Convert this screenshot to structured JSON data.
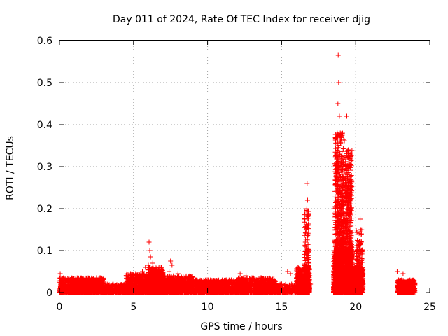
{
  "chart_data": {
    "type": "scatter",
    "title": "Day 011 of 2024, Rate Of TEC Index for receiver djig",
    "xlabel": "GPS time / hours",
    "ylabel": "ROTI / TECUs",
    "xlim": [
      0,
      25
    ],
    "ylim": [
      0,
      0.6
    ],
    "xticks": [
      "0",
      "5",
      "10",
      "15",
      "20",
      "25"
    ],
    "yticks": [
      "0",
      "0.1",
      "0.2",
      "0.3",
      "0.4",
      "0.5",
      "0.6"
    ],
    "grid": true,
    "legend": "none",
    "marker": "plus",
    "color": "#ff0000",
    "points": [
      [
        0.0,
        0.005
      ],
      [
        0.05,
        0.045
      ],
      [
        0.1,
        0.02
      ],
      [
        0.2,
        0.03
      ],
      [
        0.3,
        0.01
      ],
      [
        0.4,
        0.025
      ],
      [
        0.5,
        0.015
      ],
      [
        0.6,
        0.02
      ],
      [
        0.7,
        0.01
      ],
      [
        0.8,
        0.03
      ],
      [
        0.9,
        0.012
      ],
      [
        1.0,
        0.02
      ],
      [
        1.1,
        0.008
      ],
      [
        1.2,
        0.025
      ],
      [
        1.3,
        0.015
      ],
      [
        1.4,
        0.03
      ],
      [
        1.5,
        0.01
      ],
      [
        1.6,
        0.02
      ],
      [
        1.7,
        0.025
      ],
      [
        1.8,
        0.012
      ],
      [
        1.9,
        0.03
      ],
      [
        2.0,
        0.015
      ],
      [
        2.1,
        0.02
      ],
      [
        2.2,
        0.01
      ],
      [
        2.3,
        0.025
      ],
      [
        2.5,
        0.035
      ],
      [
        2.6,
        0.03
      ],
      [
        2.7,
        0.035
      ],
      [
        2.8,
        0.01
      ],
      [
        2.9,
        0.015
      ],
      [
        3.0,
        0.008
      ],
      [
        3.2,
        0.012
      ],
      [
        3.4,
        0.01
      ],
      [
        3.6,
        0.015
      ],
      [
        3.8,
        0.01
      ],
      [
        4.0,
        0.012
      ],
      [
        4.2,
        0.015
      ],
      [
        4.4,
        0.01
      ],
      [
        4.5,
        0.02
      ],
      [
        4.6,
        0.03
      ],
      [
        4.7,
        0.025
      ],
      [
        4.8,
        0.045
      ],
      [
        4.9,
        0.02
      ],
      [
        5.0,
        0.035
      ],
      [
        5.1,
        0.015
      ],
      [
        5.2,
        0.03
      ],
      [
        5.3,
        0.02
      ],
      [
        5.4,
        0.04
      ],
      [
        5.5,
        0.025
      ],
      [
        5.6,
        0.05
      ],
      [
        5.7,
        0.03
      ],
      [
        5.8,
        0.06
      ],
      [
        5.9,
        0.04
      ],
      [
        6.0,
        0.065
      ],
      [
        6.05,
        0.12
      ],
      [
        6.1,
        0.1
      ],
      [
        6.15,
        0.085
      ],
      [
        6.2,
        0.05
      ],
      [
        6.3,
        0.07
      ],
      [
        6.4,
        0.035
      ],
      [
        6.5,
        0.055
      ],
      [
        6.6,
        0.03
      ],
      [
        6.7,
        0.04
      ],
      [
        6.8,
        0.025
      ],
      [
        6.9,
        0.035
      ],
      [
        7.0,
        0.02
      ],
      [
        7.2,
        0.03
      ],
      [
        7.4,
        0.05
      ],
      [
        7.5,
        0.075
      ],
      [
        7.6,
        0.065
      ],
      [
        7.7,
        0.04
      ],
      [
        7.8,
        0.03
      ],
      [
        8.0,
        0.045
      ],
      [
        8.2,
        0.025
      ],
      [
        8.4,
        0.03
      ],
      [
        8.6,
        0.02
      ],
      [
        8.8,
        0.025
      ],
      [
        9.0,
        0.015
      ],
      [
        9.2,
        0.03
      ],
      [
        9.4,
        0.02
      ],
      [
        9.6,
        0.025
      ],
      [
        9.8,
        0.015
      ],
      [
        10.0,
        0.02
      ],
      [
        10.2,
        0.03
      ],
      [
        10.4,
        0.02
      ],
      [
        10.6,
        0.025
      ],
      [
        10.8,
        0.015
      ],
      [
        11.0,
        0.03
      ],
      [
        11.2,
        0.02
      ],
      [
        11.4,
        0.025
      ],
      [
        11.6,
        0.03
      ],
      [
        11.8,
        0.02
      ],
      [
        12.0,
        0.025
      ],
      [
        12.2,
        0.045
      ],
      [
        12.4,
        0.03
      ],
      [
        12.6,
        0.04
      ],
      [
        12.8,
        0.025
      ],
      [
        13.0,
        0.035
      ],
      [
        13.2,
        0.02
      ],
      [
        13.4,
        0.03
      ],
      [
        13.6,
        0.035
      ],
      [
        13.8,
        0.025
      ],
      [
        14.0,
        0.03
      ],
      [
        14.2,
        0.02
      ],
      [
        14.4,
        0.025
      ],
      [
        14.6,
        0.02
      ],
      [
        14.8,
        0.015
      ],
      [
        15.0,
        0.02
      ],
      [
        15.2,
        0.01
      ],
      [
        15.4,
        0.05
      ],
      [
        15.6,
        0.045
      ],
      [
        15.8,
        0.01
      ],
      [
        16.0,
        0.015
      ],
      [
        16.1,
        0.03
      ],
      [
        16.2,
        0.05
      ],
      [
        16.3,
        0.045
      ],
      [
        16.4,
        0.04
      ],
      [
        16.5,
        0.06
      ],
      [
        16.55,
        0.09
      ],
      [
        16.6,
        0.12
      ],
      [
        16.65,
        0.15
      ],
      [
        16.7,
        0.2
      ],
      [
        16.72,
        0.26
      ],
      [
        16.75,
        0.22
      ],
      [
        16.78,
        0.16
      ],
      [
        16.8,
        0.1
      ],
      [
        16.85,
        0.07
      ],
      [
        16.9,
        0.04
      ],
      [
        16.95,
        0.02
      ],
      [
        18.5,
        0.01
      ],
      [
        18.55,
        0.1
      ],
      [
        18.6,
        0.2
      ],
      [
        18.65,
        0.26
      ],
      [
        18.7,
        0.33
      ],
      [
        18.75,
        0.38
      ],
      [
        18.8,
        0.45
      ],
      [
        18.82,
        0.565
      ],
      [
        18.85,
        0.5
      ],
      [
        18.9,
        0.42
      ],
      [
        18.95,
        0.36
      ],
      [
        19.0,
        0.3
      ],
      [
        19.05,
        0.27
      ],
      [
        19.1,
        0.32
      ],
      [
        19.15,
        0.2
      ],
      [
        19.2,
        0.15
      ],
      [
        19.3,
        0.1
      ],
      [
        19.4,
        0.42
      ],
      [
        19.45,
        0.25
      ],
      [
        19.5,
        0.34
      ],
      [
        19.55,
        0.3
      ],
      [
        19.6,
        0.2
      ],
      [
        19.65,
        0.33
      ],
      [
        19.7,
        0.12
      ],
      [
        19.8,
        0.08
      ],
      [
        19.9,
        0.05
      ],
      [
        20.0,
        0.03
      ],
      [
        20.1,
        0.08
      ],
      [
        20.2,
        0.06
      ],
      [
        20.3,
        0.175
      ],
      [
        20.35,
        0.15
      ],
      [
        20.4,
        0.1
      ],
      [
        20.45,
        0.04
      ],
      [
        20.5,
        0.02
      ],
      [
        22.8,
        0.05
      ],
      [
        22.9,
        0.03
      ],
      [
        23.0,
        0.015
      ],
      [
        23.2,
        0.045
      ],
      [
        23.4,
        0.02
      ],
      [
        23.5,
        0.01
      ],
      [
        23.6,
        0.025
      ],
      [
        23.8,
        0.015
      ],
      [
        24.0,
        0.02
      ]
    ],
    "regions": [
      {
        "x": [
          0,
          3
        ],
        "y": [
          0,
          0.035
        ],
        "n": 1200,
        "seed": 11
      },
      {
        "x": [
          3,
          4.5
        ],
        "y": [
          0,
          0.02
        ],
        "n": 350,
        "seed": 12
      },
      {
        "x": [
          4.5,
          6
        ],
        "y": [
          0,
          0.045
        ],
        "n": 650,
        "seed": 13
      },
      {
        "x": [
          6,
          7
        ],
        "y": [
          0,
          0.06
        ],
        "n": 750,
        "seed": 14
      },
      {
        "x": [
          7,
          9
        ],
        "y": [
          0,
          0.04
        ],
        "n": 850,
        "seed": 15
      },
      {
        "x": [
          9,
          12
        ],
        "y": [
          0,
          0.03
        ],
        "n": 900,
        "seed": 16
      },
      {
        "x": [
          12,
          14.6
        ],
        "y": [
          0,
          0.035
        ],
        "n": 900,
        "seed": 17
      },
      {
        "x": [
          14.6,
          16
        ],
        "y": [
          0,
          0.02
        ],
        "n": 200,
        "seed": 18
      },
      {
        "x": [
          16,
          16.9
        ],
        "y": [
          0,
          0.06
        ],
        "n": 600,
        "seed": 19
      },
      {
        "x": [
          16.5,
          16.85
        ],
        "y": [
          0.04,
          0.2
        ],
        "n": 120,
        "seed": 20
      },
      {
        "x": [
          18.5,
          19.3
        ],
        "y": [
          0,
          0.1
        ],
        "n": 900,
        "seed": 21
      },
      {
        "x": [
          18.6,
          19.25
        ],
        "y": [
          0.08,
          0.38
        ],
        "n": 650,
        "seed": 22
      },
      {
        "x": [
          19.3,
          19.8
        ],
        "y": [
          0,
          0.1
        ],
        "n": 700,
        "seed": 23
      },
      {
        "x": [
          19.3,
          19.75
        ],
        "y": [
          0.08,
          0.34
        ],
        "n": 420,
        "seed": 24
      },
      {
        "x": [
          19.8,
          20.5
        ],
        "y": [
          0,
          0.06
        ],
        "n": 600,
        "seed": 25
      },
      {
        "x": [
          20.0,
          20.45
        ],
        "y": [
          0.03,
          0.15
        ],
        "n": 160,
        "seed": 26
      },
      {
        "x": [
          22.8,
          24.0
        ],
        "y": [
          0,
          0.03
        ],
        "n": 550,
        "seed": 27
      }
    ]
  }
}
